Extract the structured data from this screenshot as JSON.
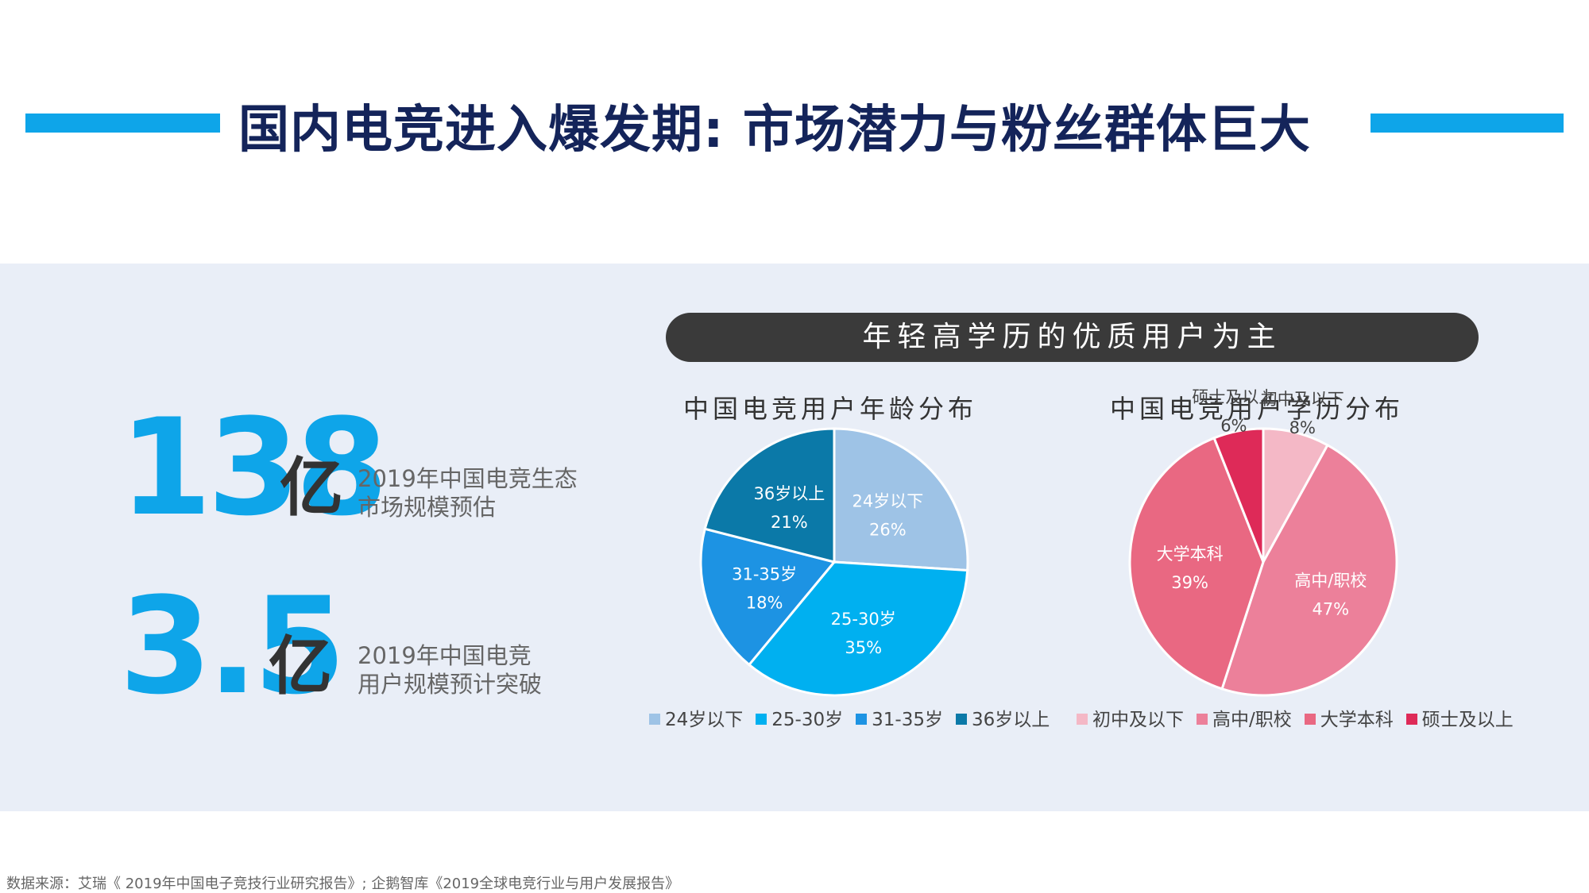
{
  "header": {
    "title": "国内电竞进入爆发期: 市场潜力与粉丝群体巨大",
    "bar_color": "#0ea5e9"
  },
  "stats": [
    {
      "number": "138",
      "unit": "亿",
      "desc_line1": "2019年中国电竞生态",
      "desc_line2": "市场规模预估"
    },
    {
      "number": "3.5",
      "unit": "亿",
      "desc_line1": "2019年中国电竞",
      "desc_line2": "用户规模预计突破"
    }
  ],
  "banner": {
    "text": "年轻高学历的优质用户为主"
  },
  "chart_data": [
    {
      "type": "pie",
      "title": "中国电竞用户年龄分布",
      "categories": [
        "24岁以下",
        "25-30岁",
        "31-35岁",
        "36岁以上"
      ],
      "values": [
        26,
        35,
        18,
        21
      ],
      "labels": [
        "26%",
        "35%",
        "18%",
        "21%"
      ],
      "colors": [
        "#9ec3e6",
        "#00b0f0",
        "#1d93e3",
        "#0b79a8"
      ],
      "legend_position": "bottom"
    },
    {
      "type": "pie",
      "title": "中国电竞用户学历分布",
      "categories": [
        "初中及以下",
        "高中/职校",
        "大学本科",
        "硕士及以上"
      ],
      "values": [
        8,
        47,
        39,
        6
      ],
      "labels": [
        "8%",
        "47%",
        "39%",
        "6%"
      ],
      "colors": [
        "#f4b8c6",
        "#ec809a",
        "#e96882",
        "#de2a58"
      ],
      "legend_position": "bottom"
    }
  ],
  "footer": {
    "source": "数据来源：艾瑞《 2019年中国电子竞技行业研究报告》; 企鹅智库《2019全球电竞行业与用户发展报告》"
  }
}
